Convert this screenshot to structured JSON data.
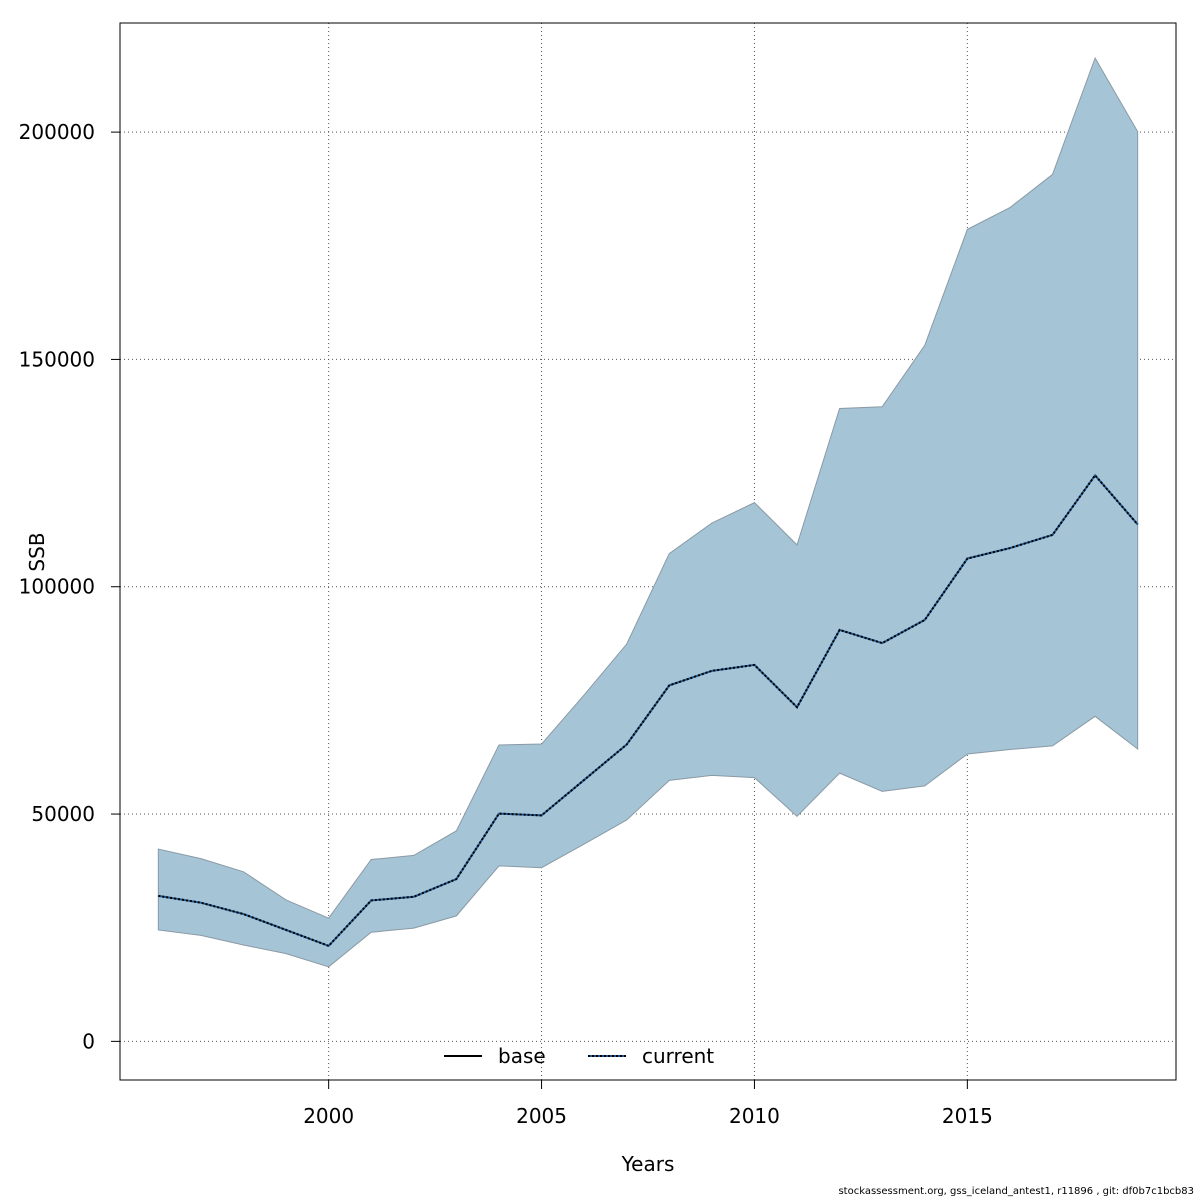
{
  "chart_data": {
    "type": "area",
    "title": "",
    "xlabel": "Years",
    "ylabel": "SSB",
    "xlim": [
      1995.1,
      2019.9
    ],
    "ylim": [
      -8500,
      224000
    ],
    "x_ticks": [
      2000,
      2005,
      2010,
      2015
    ],
    "y_ticks": [
      0,
      50000,
      100000,
      150000,
      200000
    ],
    "grid": true,
    "legend_position": "bottom-center",
    "band_color": "#a5c4d6",
    "line_color": "#000000",
    "current_dot_color": "#1f5a94",
    "x": [
      1996,
      1997,
      1998,
      1999,
      2000,
      2001,
      2002,
      2003,
      2004,
      2005,
      2006,
      2007,
      2008,
      2009,
      2010,
      2011,
      2012,
      2013,
      2014,
      2015,
      2016,
      2017,
      2018,
      2019
    ],
    "series": [
      {
        "name": "current",
        "style": "dotted",
        "values": [
          32000,
          30500,
          28000,
          24500,
          21000,
          31000,
          31800,
          35700,
          50100,
          49700,
          57500,
          65300,
          78300,
          81500,
          82800,
          73500,
          90500,
          87600,
          92700,
          106200,
          108500,
          111400,
          124500,
          113700
        ],
        "lower": [
          24500,
          23300,
          21200,
          19300,
          16400,
          24000,
          24900,
          27600,
          38600,
          38200,
          43400,
          48700,
          57400,
          58500,
          58000,
          49500,
          59000,
          55000,
          56200,
          63200,
          64200,
          65000,
          71500,
          64300
        ],
        "upper": [
          42300,
          40200,
          37300,
          31100,
          27100,
          40000,
          40900,
          46300,
          65200,
          65400,
          76200,
          87400,
          107300,
          114000,
          118500,
          109200,
          139200,
          139600,
          153100,
          178600,
          183400,
          190700,
          216300,
          200100
        ]
      }
    ]
  },
  "legend": {
    "items": [
      {
        "label": "base",
        "style": "solid"
      },
      {
        "label": "current",
        "style": "dotted"
      }
    ]
  },
  "footnote": "stockassessment.org, gss_iceland_antest1, r11896 , git: df0b7c1bcb83"
}
